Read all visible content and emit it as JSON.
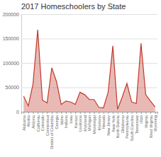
{
  "chart_data": {
    "type": "area",
    "title": "2017 Homeschoolers by State",
    "categories": [
      "Alabama",
      "Alaska",
      "Arizona",
      "California",
      "Colorado",
      "Connecticut",
      "District of Columbia",
      "Georgia",
      "Idaho",
      "Indiana",
      "Iowa",
      "Kansas",
      "Louisiana",
      "Maryland",
      "Michigan",
      "Mississippi",
      "Montana",
      "Nevada",
      "New Jersey",
      "New York",
      "North Dakota",
      "Oklahoma",
      "Pennsylvania",
      "South Carolina",
      "Tennessee",
      "Utah",
      "Virginia",
      "West Virginia",
      "Wyoming"
    ],
    "values": [
      32000,
      12000,
      57000,
      168000,
      24000,
      18000,
      90000,
      62000,
      15000,
      22000,
      20000,
      15000,
      40000,
      35000,
      25000,
      25000,
      9000,
      8000,
      40000,
      135000,
      5000,
      30000,
      58000,
      20000,
      17000,
      140000,
      35000,
      22000,
      10000
    ],
    "color": "#c0392b",
    "ylim": [
      0,
      200000
    ],
    "yticks": [
      0,
      50000,
      100000,
      150000,
      200000
    ],
    "grid": true
  }
}
